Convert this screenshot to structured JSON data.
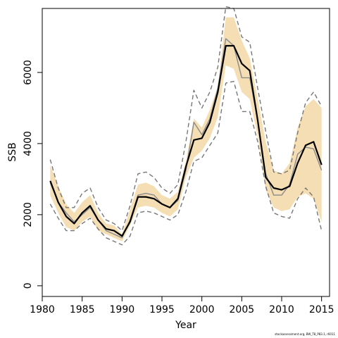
{
  "chart_data": {
    "type": "line",
    "title": "",
    "xlabel": "Year",
    "ylabel": "SSB",
    "xlim": [
      1980,
      2016
    ],
    "ylim": [
      -300,
      7800
    ],
    "x_ticks": [
      1980,
      1985,
      1990,
      1995,
      2000,
      2005,
      2010,
      2015
    ],
    "y_ticks": [
      0,
      2000,
      4000,
      6000
    ],
    "grid": false,
    "legend": "none",
    "x": [
      1981,
      1982,
      1983,
      1984,
      1985,
      1986,
      1987,
      1988,
      1989,
      1990,
      1991,
      1992,
      1993,
      1994,
      1995,
      1996,
      1997,
      1998,
      1999,
      2000,
      2001,
      2002,
      2003,
      2004,
      2005,
      2006,
      2007,
      2008,
      2009,
      2010,
      2011,
      2012,
      2013,
      2014,
      2015
    ],
    "series": [
      {
        "role": "ci_band",
        "color": "#f5deb3",
        "upper": [
          3400,
          2800,
          2300,
          2050,
          2350,
          2550,
          2050,
          1750,
          1700,
          1450,
          2150,
          2850,
          2900,
          2800,
          2550,
          2450,
          2650,
          3500,
          4700,
          4450,
          4950,
          5600,
          7550,
          7550,
          6900,
          6400,
          5250,
          4050,
          3250,
          3150,
          3450,
          4450,
          5050,
          5250,
          5000
        ],
        "lower": [
          2550,
          2050,
          1650,
          1550,
          1800,
          1950,
          1550,
          1450,
          1350,
          1250,
          1700,
          2200,
          2250,
          2200,
          2050,
          1950,
          2150,
          3050,
          3600,
          3800,
          4150,
          4750,
          6200,
          6100,
          5450,
          5250,
          4200,
          2700,
          2200,
          2100,
          2150,
          2500,
          2600,
          2450,
          1800
        ]
      },
      {
        "role": "upper_dashed",
        "color": "#777777",
        "values": [
          3550,
          2750,
          2200,
          2200,
          2600,
          2750,
          2200,
          1850,
          1750,
          1550,
          2250,
          3150,
          3200,
          3050,
          2750,
          2600,
          2850,
          4050,
          5500,
          5000,
          5450,
          6150,
          7850,
          7800,
          7000,
          6850,
          5550,
          4350,
          3200,
          3150,
          3250,
          4300,
          5150,
          5450,
          5050
        ]
      },
      {
        "role": "lower_dashed",
        "color": "#777777",
        "values": [
          2300,
          1900,
          1550,
          1550,
          1750,
          1900,
          1600,
          1350,
          1250,
          1150,
          1400,
          2050,
          2100,
          2050,
          1950,
          1850,
          2000,
          2650,
          3500,
          3600,
          3950,
          4300,
          5700,
          5750,
          4900,
          4900,
          4050,
          2800,
          2050,
          1950,
          1900,
          2450,
          2750,
          2500,
          1550
        ]
      },
      {
        "role": "grey_line",
        "color": "#8a8a8a",
        "values": [
          2900,
          2350,
          2050,
          1800,
          2000,
          2200,
          1850,
          1550,
          1450,
          1350,
          1850,
          2550,
          2600,
          2550,
          2300,
          2200,
          2400,
          3250,
          4600,
          4250,
          4700,
          5550,
          6950,
          6750,
          5850,
          5850,
          4650,
          3150,
          2550,
          2550,
          2850,
          3700,
          3900,
          3850,
          3250
        ]
      },
      {
        "role": "estimate",
        "color": "#000000",
        "values": [
          2950,
          2350,
          1950,
          1750,
          2050,
          2250,
          1850,
          1600,
          1550,
          1400,
          1800,
          2500,
          2500,
          2450,
          2300,
          2200,
          2450,
          3350,
          4100,
          4150,
          4600,
          5450,
          6750,
          6750,
          6250,
          6050,
          4650,
          3050,
          2750,
          2700,
          2800,
          3450,
          3950,
          4050,
          3400
        ]
      }
    ],
    "credit": "stockassessment.org, BW_T8_P83.1, r6011"
  }
}
